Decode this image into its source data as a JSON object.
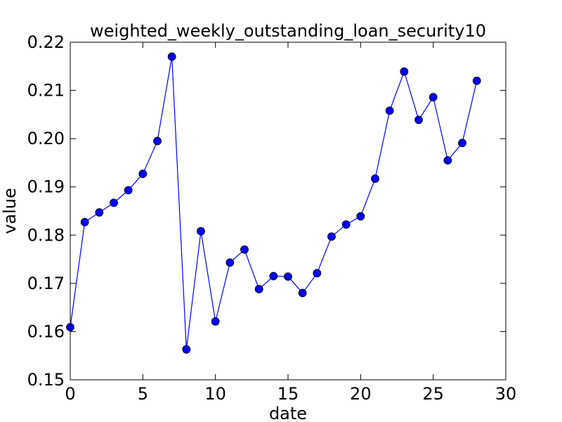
{
  "chart_data": {
    "type": "line",
    "title": "weighted_weekly_outstanding_loan_security10",
    "xlabel": "date",
    "ylabel": "value",
    "xlim": [
      0,
      30
    ],
    "ylim": [
      0.15,
      0.22
    ],
    "xticks": [
      0,
      5,
      10,
      15,
      20,
      25,
      30
    ],
    "xtick_labels": [
      "0",
      "5",
      "10",
      "15",
      "20",
      "25",
      "30"
    ],
    "yticks": [
      0.15,
      0.16,
      0.17,
      0.18,
      0.19,
      0.2,
      0.21,
      0.22
    ],
    "ytick_labels": [
      "0.15",
      "0.16",
      "0.17",
      "0.18",
      "0.19",
      "0.20",
      "0.21",
      "0.22"
    ],
    "grid": false,
    "series": [
      {
        "name": "value",
        "color": "#0000ff",
        "x": [
          0,
          1,
          2,
          3,
          4,
          5,
          6,
          7,
          8,
          9,
          10,
          11,
          12,
          13,
          14,
          15,
          16,
          17,
          18,
          19,
          20,
          21,
          22,
          23,
          24,
          25,
          26,
          27,
          28
        ],
        "values": [
          0.1609,
          0.1827,
          0.1847,
          0.1867,
          0.1893,
          0.1927,
          0.1995,
          0.217,
          0.1563,
          0.1808,
          0.1621,
          0.1743,
          0.177,
          0.1688,
          0.1715,
          0.1714,
          0.168,
          0.1721,
          0.1797,
          0.1822,
          0.1839,
          0.1917,
          0.2058,
          0.2139,
          0.2039,
          0.2086,
          0.1955,
          0.1991,
          0.212
        ]
      }
    ]
  }
}
